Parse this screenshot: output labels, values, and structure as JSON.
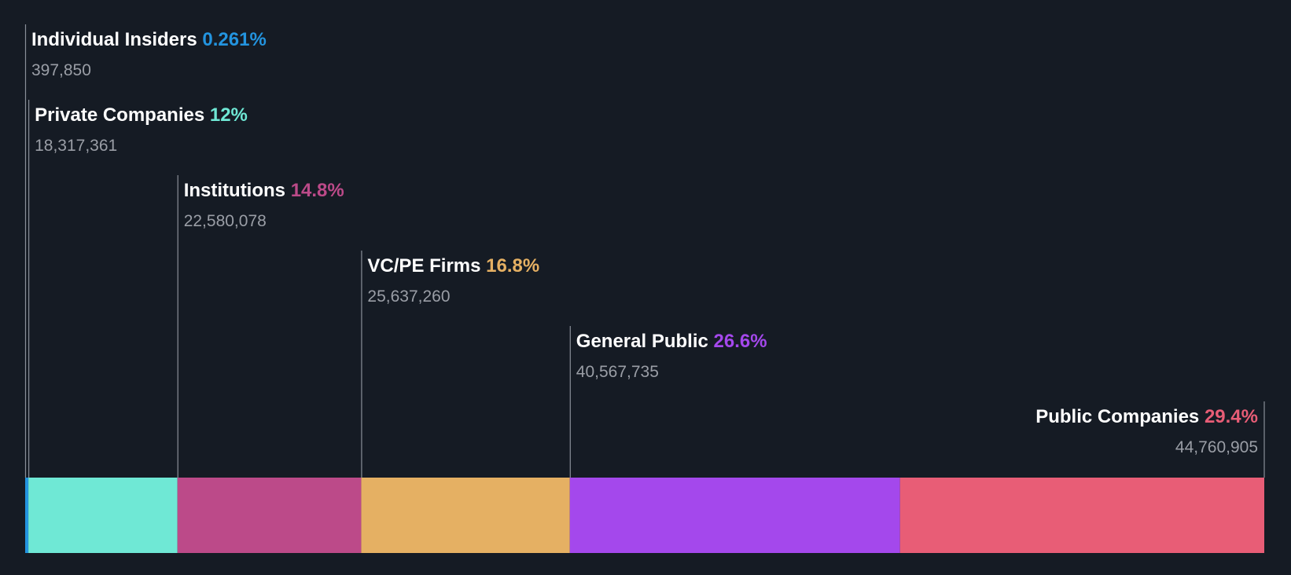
{
  "colors": {
    "background": "#151b24",
    "leader_line": "#8a8f98",
    "count_text": "#9a9ea6",
    "label_text": "#ffffff"
  },
  "chart_data": {
    "type": "bar",
    "stacked": true,
    "orientation": "horizontal",
    "title": "",
    "xlabel": "",
    "ylabel": "",
    "legend": "inline labels above segments",
    "grid": false,
    "series": [
      {
        "name": "Individual Insiders",
        "percent_label": "0.261%",
        "percent": 0.261,
        "count_label": "397,850",
        "count": 397850,
        "color": "#2394df"
      },
      {
        "name": "Private Companies",
        "percent_label": "12%",
        "percent": 12,
        "count_label": "18,317,361",
        "count": 18317361,
        "color": "#6fe8d5"
      },
      {
        "name": "Institutions",
        "percent_label": "14.8%",
        "percent": 14.8,
        "count_label": "22,580,078",
        "count": 22580078,
        "color": "#bc4a89"
      },
      {
        "name": "VC/PE Firms",
        "percent_label": "16.8%",
        "percent": 16.8,
        "count_label": "25,637,260",
        "count": 25637260,
        "color": "#e5b063"
      },
      {
        "name": "General Public",
        "percent_label": "26.6%",
        "percent": 26.6,
        "count_label": "40,567,735",
        "count": 40567735,
        "color": "#a448ec"
      },
      {
        "name": "Public Companies",
        "percent_label": "29.4%",
        "percent": 29.4,
        "count_label": "44,760,905",
        "count": 44760905,
        "color": "#e85d76"
      }
    ]
  }
}
